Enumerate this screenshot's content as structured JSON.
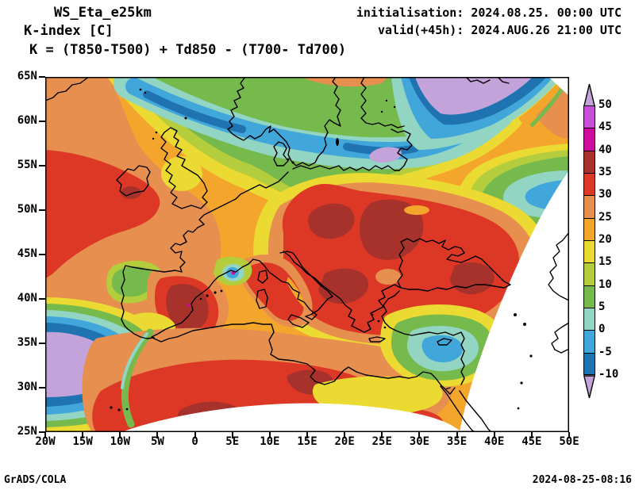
{
  "header": {
    "model": "WS_Eta_e25km",
    "field": "K-index [C]",
    "formula": "K = (T850-T500) + Td850 - (T700- Td700)",
    "init_line": "initialisation: 2024.08.25. 00:00 UTC",
    "valid_line": "valid(+45h): 2024.AUG.26 21:00 UTC"
  },
  "footer": {
    "left": "GrADS/COLA",
    "right": "2024-08-25-08:16"
  },
  "chart_data": {
    "type": "filled-contour-map",
    "title": "K-index [C]",
    "model": "WS_Eta_e25km",
    "region": "Europe and North Africa, fan-shaped model domain with white cutoffs at top-right corner, lower-right side and bottom arc",
    "lat_range_deg": [
      25,
      65
    ],
    "lon_range_deg": [
      -20,
      50
    ],
    "lat_ticks": [
      "65N",
      "60N",
      "55N",
      "50N",
      "45N",
      "40N",
      "35N",
      "30N",
      "25N"
    ],
    "lon_ticks": [
      "20W",
      "15W",
      "10W",
      "5W",
      "0",
      "5E",
      "10E",
      "15E",
      "20E",
      "25E",
      "30E",
      "35E",
      "40E",
      "45E",
      "50E"
    ],
    "levels": [
      -10,
      -5,
      0,
      5,
      10,
      15,
      20,
      25,
      30,
      35,
      40,
      45,
      50
    ],
    "units": "C",
    "grid": "off",
    "palette": {
      "below": "#C3A3DA",
      "colors": [
        "#1F73B1",
        "#41A7DB",
        "#92D5C3",
        "#76B94C",
        "#B3CD3D",
        "#EBDA31",
        "#F4A62C",
        "#E78F4E",
        "#DD3825",
        "#A6322B",
        "#CE0D9E",
        "#C94FD6"
      ],
      "above": "#C3A3DA",
      "no_data": "#FFFFFF"
    },
    "features": [
      "K>30 (red) maxima: Atlantic west of Ireland, central/eastern Europe from Germany through Balkans-Black Sea-Turkey, eastern Spain, NW Africa, with K>35 dark-red cores",
      "K<-10 (lavender) minima: band from southern Scandinavia/Baltic toward NW Russia, and Atlantic southwest of Iberia, ringed by blue and cyan",
      "cool cyan/blue band along Norwegian Sea - North Sea and over the eastern Mediterranean near Cyprus"
    ]
  },
  "colorbar": {
    "labels": [
      "50",
      "45",
      "40",
      "35",
      "30",
      "25",
      "20",
      "15",
      "10",
      "5",
      "0",
      "-5",
      "-10"
    ],
    "colors": [
      "#C94FD6",
      "#CE0D9E",
      "#A6322B",
      "#DD3825",
      "#E78F4E",
      "#F4A62C",
      "#EBDA31",
      "#B3CD3D",
      "#76B94C",
      "#92D5C3",
      "#41A7DB",
      "#1F73B1"
    ]
  }
}
